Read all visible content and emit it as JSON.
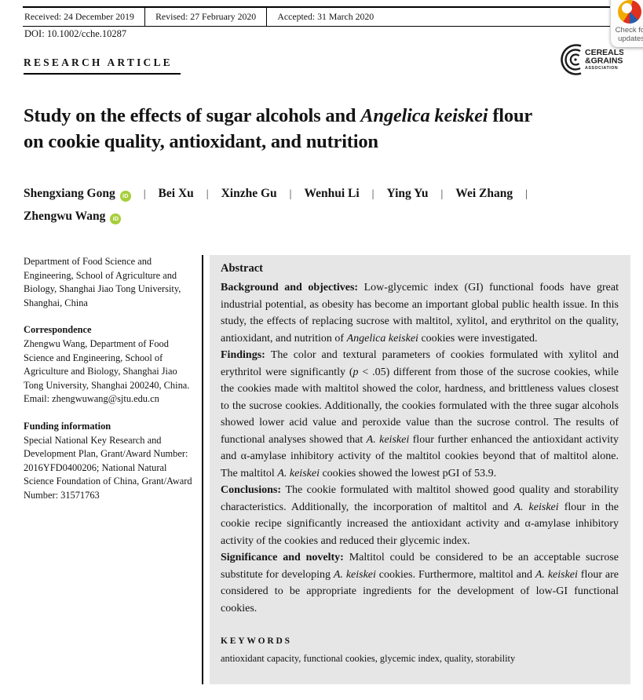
{
  "meta_bar": {
    "received": "Received: 24 December 2019",
    "revised": "Revised: 27 February 2020",
    "accepted": "Accepted: 31 March 2020",
    "doi": "DOI: 10.1002/cche.10287"
  },
  "article_type": "RESEARCH ARTICLE",
  "journal_logo": {
    "line1": "CEREALS",
    "line2": "&GRAINS",
    "line3": "ASSOCIATION"
  },
  "update_badge": {
    "line1": "Check for",
    "line2": "updates"
  },
  "title": {
    "segments": [
      {
        "text": "Study on the effects of sugar alcohols and ",
        "style": "normal"
      },
      {
        "text": "Angelica keiskei",
        "style": "italic"
      },
      {
        "text": " flour",
        "style": "normal"
      },
      {
        "style": "break"
      },
      {
        "text": "on cookie quality, antioxidant, and nutrition",
        "style": "normal"
      }
    ]
  },
  "author_separator": "|",
  "orcid_label": "iD",
  "authors": [
    {
      "name": "Shengxiang Gong",
      "orcid": true,
      "sep": true
    },
    {
      "name": "Bei Xu",
      "sep": true
    },
    {
      "name": "Xinzhe Gu",
      "sep": true
    },
    {
      "name": "Wenhui Li",
      "sep": true
    },
    {
      "name": "Ying Yu",
      "sep": true
    },
    {
      "name": "Wei Zhang",
      "sep": true,
      "break_after": true
    },
    {
      "name": "Zhengwu Wang",
      "orcid": true
    }
  ],
  "sidebar": {
    "affiliation": "Department of Food Science and Engineering, School of Agriculture and Biology, Shanghai Jiao Tong University, Shanghai, China",
    "correspondence_heading": "Correspondence",
    "correspondence": "Zhengwu Wang, Department of Food Science and Engineering, School of Agriculture and Biology, Shanghai Jiao Tong University, Shanghai 200240, China.",
    "email": "Email: zhengwuwang@sjtu.edu.cn",
    "funding_heading": "Funding information",
    "funding": "Special National Key Research and Development Plan, Grant/Award Number: 2016YFD0400206; National Natural Science Foundation of China, Grant/Award Number: 31571763"
  },
  "abstract": {
    "heading": "Abstract",
    "paragraphs": [
      {
        "segments": [
          {
            "text": "Background and objectives: ",
            "style": "bold"
          },
          {
            "text": "Low-glycemic index (GI) functional foods have great industrial potential, as obesity has become an important global public health issue. In this study, the effects of replacing sucrose with maltitol, xylitol, and erythritol on the quality, antioxidant, and nutrition of ",
            "style": "normal"
          },
          {
            "text": "Angelica keiskei",
            "style": "italic"
          },
          {
            "text": " cookies were investigated.",
            "style": "normal"
          }
        ]
      },
      {
        "segments": [
          {
            "text": "Findings: ",
            "style": "bold"
          },
          {
            "text": "The color and textural parameters of cookies formulated with xylitol and erythritol were significantly (",
            "style": "normal"
          },
          {
            "text": "p",
            "style": "italic"
          },
          {
            "text": " < .05) different from those of the sucrose cookies, while the cookies made with maltitol showed the color, hardness, and brittleness values closest to the sucrose cookies. Additionally, the cookies formulated with the three sugar alcohols showed lower acid value and peroxide value than the sucrose control. The results of functional analyses showed that ",
            "style": "normal"
          },
          {
            "text": "A. keiskei",
            "style": "italic"
          },
          {
            "text": " flour further enhanced the antioxidant activity and α-amylase inhibitory activity of the maltitol cookies beyond that of maltitol alone. The maltitol ",
            "style": "normal"
          },
          {
            "text": "A. keiskei",
            "style": "italic"
          },
          {
            "text": " cookies showed the lowest pGI of 53.9.",
            "style": "normal"
          }
        ]
      },
      {
        "segments": [
          {
            "text": "Conclusions: ",
            "style": "bold"
          },
          {
            "text": "The cookie formulated with maltitol showed good quality and storability characteristics. Additionally, the incorporation of maltitol and ",
            "style": "normal"
          },
          {
            "text": "A. keiskei",
            "style": "italic"
          },
          {
            "text": " flour in the cookie recipe significantly increased the antioxidant activity and α-amylase inhibitory activity of the cookies and reduced their glycemic index.",
            "style": "normal"
          }
        ]
      },
      {
        "segments": [
          {
            "text": "Significance and novelty: ",
            "style": "bold"
          },
          {
            "text": "Maltitol could be considered to be an acceptable sucrose substitute for developing ",
            "style": "normal"
          },
          {
            "text": "A. keiskei",
            "style": "italic"
          },
          {
            "text": " cookies. Furthermore, maltitol and ",
            "style": "normal"
          },
          {
            "text": "A. keiskei",
            "style": "italic"
          },
          {
            "text": " flour are considered to be appropriate ingredients for the development of low-GI functional cookies.",
            "style": "normal"
          }
        ]
      }
    ],
    "keywords_heading": "KEYWORDS",
    "keywords": "antioxidant capacity, functional cookies, glycemic index, quality, storability"
  },
  "colors": {
    "abstract_bg": "#e6e6e6",
    "orcid_green": "#a6ce39",
    "rule_black": "#000000"
  }
}
